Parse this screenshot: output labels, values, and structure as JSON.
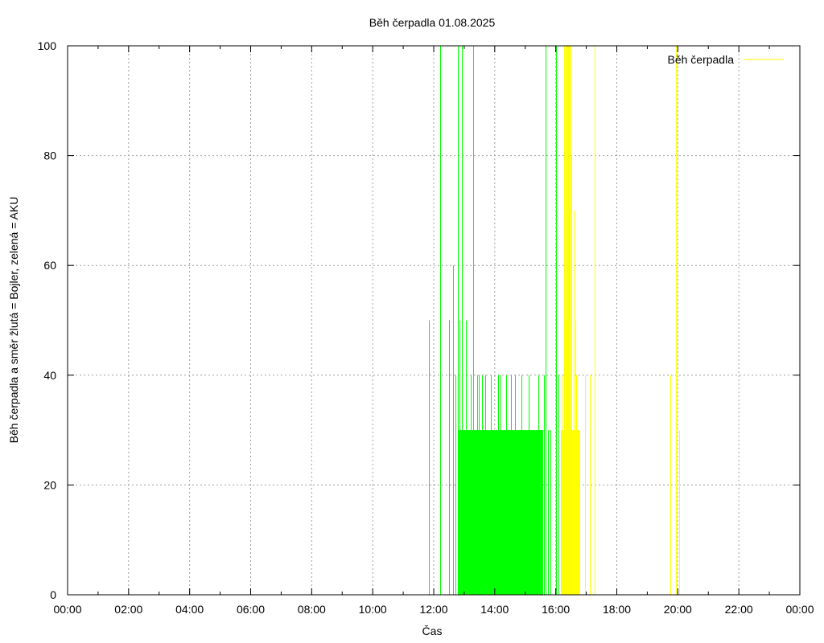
{
  "chart_data": {
    "type": "line",
    "title": "Běh čerpadla 01.08.2025",
    "xlabel": "Čas",
    "ylabel": "Běh čerpadla a směr žlutá = Bojler, zelená = AKU",
    "x_range_hours": [
      0,
      24
    ],
    "ylim": [
      0,
      100
    ],
    "x_tick_labels": [
      "00:00",
      "02:00",
      "04:00",
      "06:00",
      "08:00",
      "10:00",
      "12:00",
      "14:00",
      "16:00",
      "18:00",
      "20:00",
      "22:00",
      "00:00"
    ],
    "y_tick_labels": [
      "0",
      "20",
      "40",
      "60",
      "80",
      "100"
    ],
    "grid": true,
    "legend": {
      "position": "top-right",
      "entries": [
        {
          "label": "Běh čerpadla",
          "color": "#ffff00"
        }
      ]
    },
    "series": [
      {
        "color": "#00ff00",
        "spikes": [
          [
            "11:50",
            50
          ],
          [
            "12:12",
            100
          ],
          [
            "12:30",
            50
          ],
          [
            "12:38",
            60
          ],
          [
            "12:42",
            40
          ],
          [
            "12:48",
            100
          ],
          [
            "12:50",
            50
          ],
          [
            "12:55",
            100
          ],
          [
            "13:03",
            50
          ],
          [
            "13:12",
            40
          ],
          [
            "13:18",
            100
          ],
          [
            "13:25",
            40
          ],
          [
            "13:28",
            40
          ],
          [
            "13:35",
            40
          ],
          [
            "13:42",
            40
          ],
          [
            "13:52",
            40
          ],
          [
            "14:07",
            40
          ],
          [
            "14:12",
            40
          ],
          [
            "14:22",
            40
          ],
          [
            "14:32",
            40
          ],
          [
            "14:40",
            40
          ],
          [
            "14:52",
            40
          ],
          [
            "15:07",
            40
          ],
          [
            "15:25",
            40
          ],
          [
            "15:37",
            40
          ],
          [
            "15:40",
            100
          ],
          [
            "15:45",
            30
          ],
          [
            "15:50",
            30
          ],
          [
            "16:00",
            100
          ],
          [
            "16:05",
            40
          ]
        ],
        "blocks": [
          {
            "start": "12:48",
            "end": "13:18",
            "value": 30
          },
          {
            "start": "13:18",
            "end": "15:35",
            "value": 30
          }
        ]
      },
      {
        "name": "Běh čerpadla",
        "color": "#ffff00",
        "spikes": [
          [
            "16:12",
            40
          ],
          [
            "16:17",
            100
          ],
          [
            "16:20",
            50
          ],
          [
            "16:25",
            100
          ],
          [
            "16:30",
            80
          ],
          [
            "16:35",
            70
          ],
          [
            "16:38",
            50
          ],
          [
            "16:40",
            40
          ],
          [
            "16:47",
            30
          ],
          [
            "16:58",
            40
          ],
          [
            "17:07",
            40
          ],
          [
            "17:17",
            100
          ],
          [
            "19:45",
            40
          ],
          [
            "19:57",
            100
          ],
          [
            "20:02",
            30
          ]
        ],
        "blocks": [
          {
            "start": "16:10",
            "end": "16:48",
            "value": 30
          },
          {
            "start": "16:20",
            "end": "16:30",
            "value": 100
          }
        ]
      }
    ]
  }
}
